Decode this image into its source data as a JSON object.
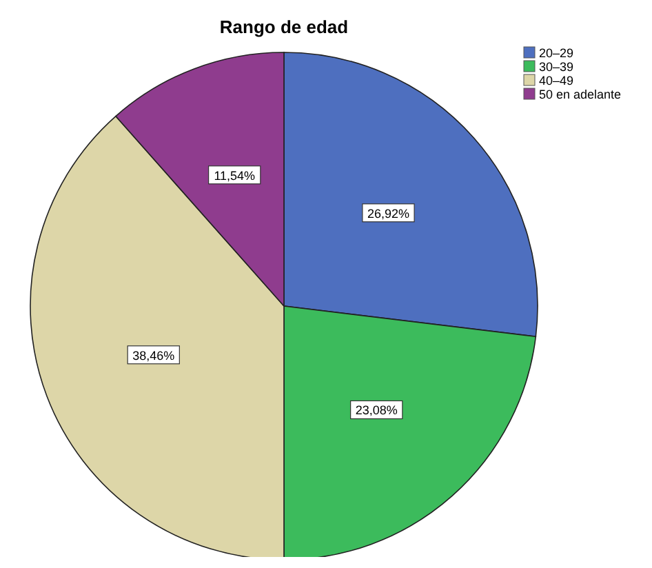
{
  "chart_data": {
    "type": "pie",
    "title": "Rango de edad",
    "categories": [
      "20–29",
      "30–39",
      "40–49",
      "50 en adelante"
    ],
    "values": [
      26.92,
      23.08,
      38.46,
      11.54
    ],
    "colors": [
      "#4e6fbf",
      "#3cbb5c",
      "#ddd6a8",
      "#8f3c8e"
    ],
    "value_labels": [
      "26,92%",
      "23,08%",
      "38,46%",
      "11,54%"
    ],
    "legend": "top right"
  }
}
